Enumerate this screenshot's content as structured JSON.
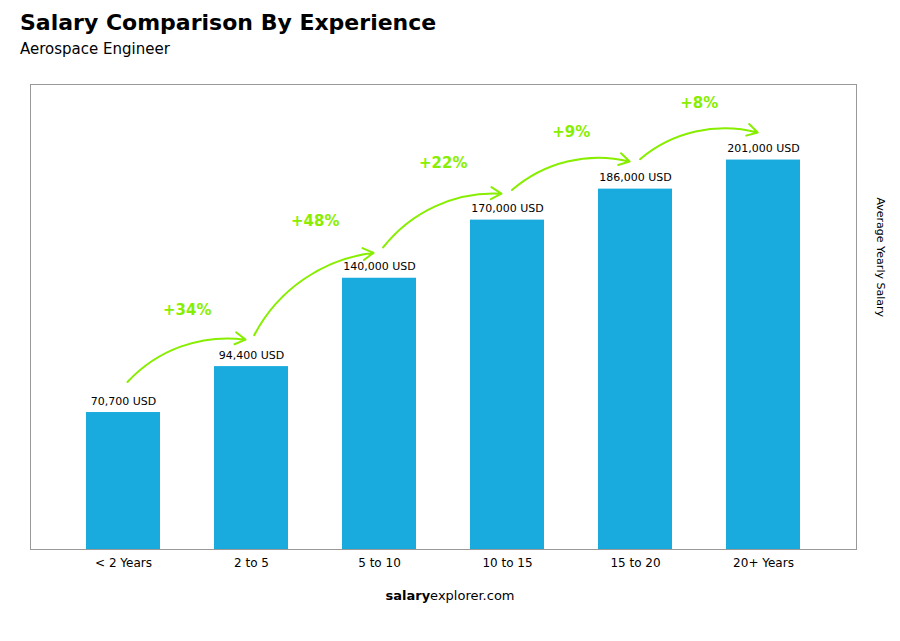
{
  "chart_data": {
    "type": "bar",
    "title": "Salary Comparison By Experience",
    "subtitle": "Aerospace Engineer",
    "ylabel": "Average Yearly Salary",
    "categories": [
      "< 2 Years",
      "2 to 5",
      "5 to 10",
      "10 to 15",
      "15 to 20",
      "20+ Years"
    ],
    "values": [
      70700,
      94400,
      140000,
      170000,
      186000,
      201000
    ],
    "value_labels": [
      "70,700 USD",
      "94,400 USD",
      "140,000 USD",
      "170,000 USD",
      "186,000 USD",
      "201,000 USD"
    ],
    "data_labels": true,
    "color": "#1aabde",
    "ylim": [
      0,
      240000
    ],
    "grid": false,
    "tick_labels": "x",
    "annotations": [
      {
        "text": "+34%",
        "color": "#88ee00"
      },
      {
        "text": "+48%",
        "color": "#88ee00"
      },
      {
        "text": "+22%",
        "color": "#88ee00"
      },
      {
        "text": "+9%",
        "color": "#88ee00"
      },
      {
        "text": "+8%",
        "color": "#88ee00"
      }
    ],
    "footer": [
      "salary",
      "explorer.com"
    ]
  }
}
